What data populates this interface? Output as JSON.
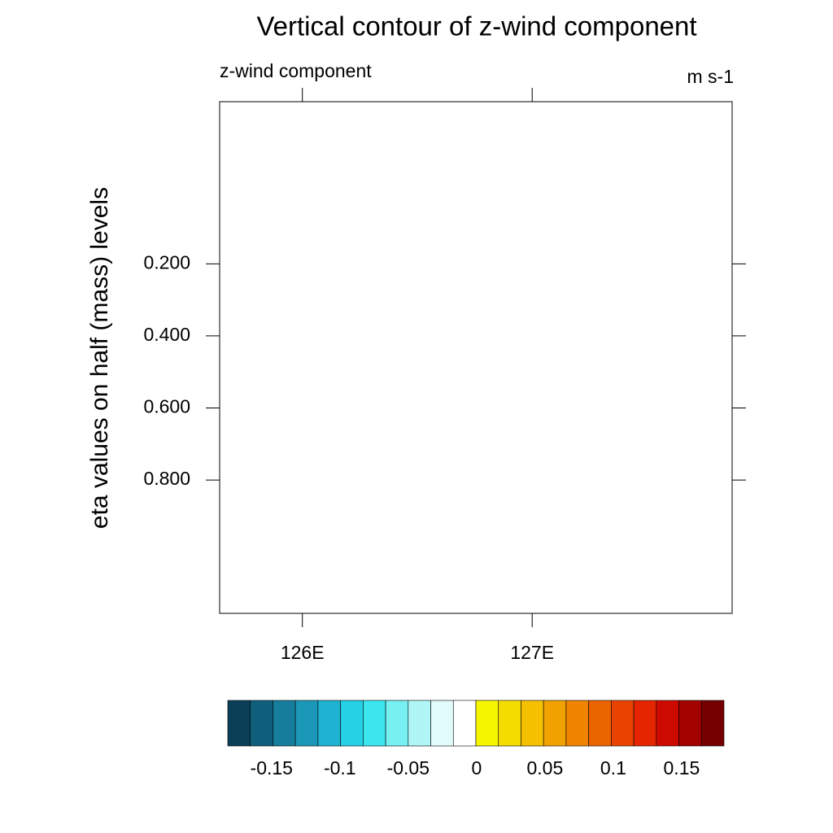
{
  "chart_data": {
    "type": "contour",
    "title": "Vertical contour of z-wind component",
    "left_string": "z-wind component",
    "right_string": "m s-1",
    "y_label": "eta values on half (mass) levels",
    "xlim": [
      125.64,
      127.87
    ],
    "xticks": [
      {
        "value": 126,
        "label": "126E"
      },
      {
        "value": 127,
        "label": "127E"
      }
    ],
    "ylim": [
      -0.25,
      1.17
    ],
    "y_reversed": true,
    "yticks": [
      {
        "value": 0.2,
        "label": "0.200"
      },
      {
        "value": 0.4,
        "label": "0.400"
      },
      {
        "value": 0.6,
        "label": "0.600"
      },
      {
        "value": 0.8,
        "label": "0.800"
      }
    ],
    "colorbar": {
      "range": [
        -0.182,
        0.181
      ],
      "ticks": [
        -0.15,
        -0.1,
        -0.05,
        0,
        0.05,
        0.1,
        0.15
      ],
      "colors": [
        "#0a3f57",
        "#0f5f7c",
        "#167d9c",
        "#1b98b8",
        "#1fb3d2",
        "#25cfe4",
        "#3be6ee",
        "#78f0f2",
        "#b0f6f6",
        "#e2fbfb",
        "#ffffff",
        "#f6f600",
        "#f5dc00",
        "#f5c000",
        "#f2a200",
        "#ef8400",
        "#ea6400",
        "#e84400",
        "#e42500",
        "#cc0a00",
        "#a30000",
        "#760000"
      ]
    }
  }
}
